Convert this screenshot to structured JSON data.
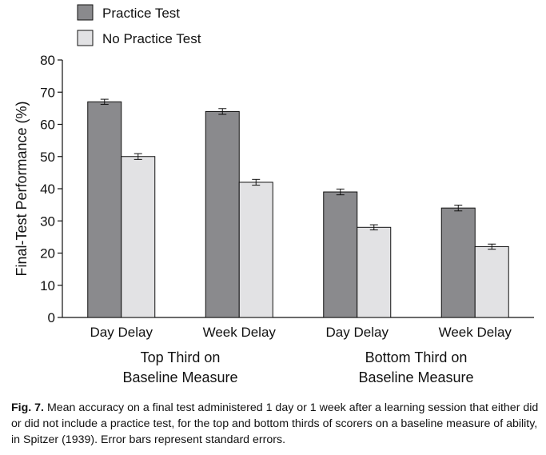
{
  "chart_data": {
    "type": "bar",
    "ylabel": "Final-Test Performance (%)",
    "ylim": [
      0,
      80
    ],
    "yticks": [
      0,
      10,
      20,
      30,
      40,
      50,
      60,
      70,
      80
    ],
    "categories": [
      "Day Delay",
      "Week Delay",
      "Day Delay",
      "Week Delay"
    ],
    "groups": [
      {
        "label_lines": [
          "Top Third on",
          "Baseline Measure"
        ]
      },
      {
        "label_lines": [
          "Bottom Third on",
          "Baseline Measure"
        ]
      }
    ],
    "series": [
      {
        "name": "Practice Test",
        "color": "#8a8a8d",
        "values": [
          67,
          64,
          39,
          34
        ],
        "errors": [
          0.8,
          0.9,
          0.9,
          0.9
        ]
      },
      {
        "name": "No Practice Test",
        "color": "#e2e2e4",
        "values": [
          50,
          42,
          28,
          22
        ],
        "errors": [
          0.9,
          0.9,
          0.8,
          0.8
        ]
      }
    ],
    "legend": "top-left",
    "grid": false
  },
  "caption": {
    "label": "Fig. 7.",
    "text": "Mean accuracy on a final test administered 1 day or 1 week after a learning session that either did or did not include a practice test, for the top and bottom thirds of scorers on a baseline measure of ability, in Spitzer (1939). Error bars represent standard errors."
  }
}
